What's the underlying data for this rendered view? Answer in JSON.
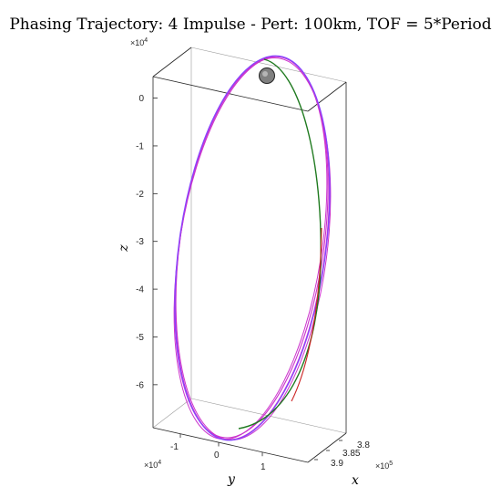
{
  "chart_data": {
    "type": "line",
    "title": "Phasing Trajectory: 4 Impulse - Pert: 100km, TOF = 5*Period",
    "xlabel": "x",
    "ylabel": "y",
    "zlabel": "z",
    "x_exponent": "×10",
    "x_exponent_power": "5",
    "y_exponent": "×10",
    "y_exponent_power": "4",
    "z_exponent": "×10",
    "z_exponent_power": "4",
    "x_ticks": [
      "3.8",
      "3.85",
      "3.9"
    ],
    "y_ticks": [
      "-1",
      "0",
      "1"
    ],
    "z_ticks": [
      "0",
      "-1",
      "-2",
      "-3",
      "-4",
      "-5",
      "-6"
    ],
    "z_tick_values": [
      0,
      -1,
      -2,
      -3,
      -4,
      -5,
      -6
    ],
    "zlim": [
      -6.9,
      0.45
    ],
    "grid": false,
    "legend": "none",
    "series": [
      {
        "color": "#cc33cc",
        "style": "phasing orbit loops",
        "x": [
          3.8,
          3.9
        ],
        "y": [
          -1.2,
          1.1
        ],
        "z": [
          -6.65,
          0.45
        ]
      },
      {
        "color": "#8844ff",
        "style": "phasing orbit loops",
        "x": [
          3.8,
          3.9
        ],
        "y": [
          -1.2,
          1.1
        ],
        "z": [
          -6.65,
          0.45
        ]
      },
      {
        "color": "#1f7a1f",
        "style": "reference orbit",
        "x": [
          3.8,
          3.9
        ],
        "y": [
          -0.6,
          1.0
        ],
        "z": [
          -6.55,
          0.4
        ]
      },
      {
        "color": "#cc2222",
        "style": "reference orbit segment",
        "x": [
          3.85,
          3.9
        ],
        "y": [
          0.5,
          1.0
        ],
        "z": [
          -6.0,
          -3.5
        ]
      }
    ],
    "marker": {
      "type": "sphere",
      "color": "#808080"
    }
  }
}
